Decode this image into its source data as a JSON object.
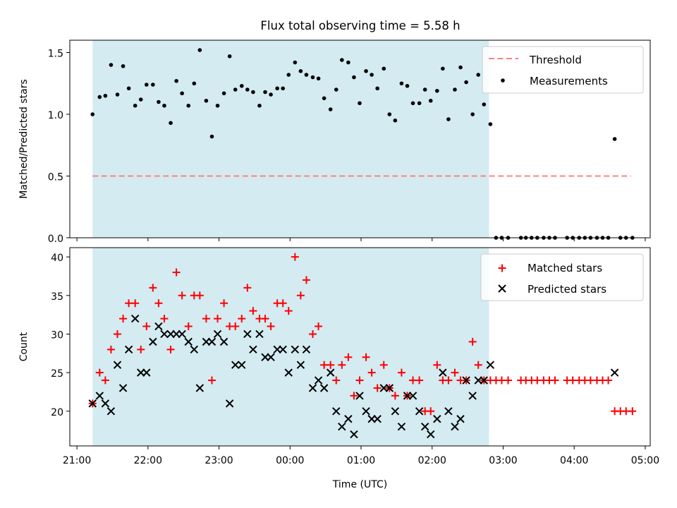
{
  "title": "Flux total observing time = 5.58 h",
  "colors": {
    "shade": "#add8e6",
    "threshold": "#ff8080",
    "matched": "#ff0000",
    "predicted": "#000000",
    "measurement": "#000000"
  },
  "chart_data": [
    {
      "type": "scatter",
      "panel": "top",
      "ylabel": "Matched/Predicted stars",
      "ylim": [
        0,
        1.6
      ],
      "yticks": [
        0.0,
        0.5,
        1.0,
        1.5
      ],
      "ytick_labels": [
        "0.0",
        "0.5",
        "1.0",
        "1.5"
      ],
      "shaded_span_hours": [
        21.22,
        26.8
      ],
      "legend": [
        "Threshold",
        "Measurements"
      ],
      "legend_position": "top-right",
      "threshold": {
        "name": "Threshold",
        "value": 0.5,
        "x_range_hours": [
          21.22,
          28.8
        ]
      },
      "series": [
        {
          "name": "Measurements",
          "x_hours": [
            21.22,
            21.32,
            21.4,
            21.48,
            21.57,
            21.65,
            21.73,
            21.82,
            21.9,
            21.98,
            22.07,
            22.15,
            22.23,
            22.32,
            22.4,
            22.48,
            22.57,
            22.65,
            22.73,
            22.82,
            22.9,
            22.98,
            23.07,
            23.15,
            23.23,
            23.32,
            23.4,
            23.48,
            23.57,
            23.65,
            23.73,
            23.82,
            23.9,
            23.98,
            24.07,
            24.15,
            24.23,
            24.32,
            24.4,
            24.48,
            24.57,
            24.65,
            24.73,
            24.82,
            24.9,
            24.98,
            25.07,
            25.15,
            25.23,
            25.32,
            25.4,
            25.48,
            25.57,
            25.65,
            25.73,
            25.82,
            25.9,
            25.98,
            26.07,
            26.15,
            26.23,
            26.32,
            26.4,
            26.48,
            26.57,
            26.65,
            26.73,
            26.82,
            26.9,
            26.98,
            27.07,
            27.25,
            27.32,
            27.4,
            27.48,
            27.57,
            27.65,
            27.73,
            27.9,
            27.98,
            28.07,
            28.15,
            28.23,
            28.32,
            28.4,
            28.48,
            28.57,
            28.65,
            28.73,
            28.82
          ],
          "y": [
            1.0,
            1.14,
            1.15,
            1.4,
            1.16,
            1.39,
            1.21,
            1.07,
            1.12,
            1.24,
            1.24,
            1.1,
            1.07,
            0.93,
            1.27,
            1.17,
            1.07,
            1.25,
            1.52,
            1.11,
            0.82,
            1.07,
            1.17,
            1.47,
            1.2,
            1.23,
            1.2,
            1.18,
            1.07,
            1.18,
            1.16,
            1.21,
            1.21,
            1.32,
            1.42,
            1.35,
            1.32,
            1.3,
            1.29,
            1.13,
            1.04,
            1.2,
            1.44,
            1.42,
            1.3,
            1.09,
            1.35,
            1.32,
            1.21,
            1.37,
            1.0,
            0.95,
            1.25,
            1.23,
            1.09,
            1.09,
            1.2,
            1.11,
            1.19,
            1.37,
            0.96,
            1.2,
            1.38,
            1.26,
            1.0,
            1.32,
            1.08,
            0.92,
            0.0,
            0.0,
            0.0,
            0.0,
            0.0,
            0.0,
            0.0,
            0.0,
            0.0,
            0.0,
            0.0,
            0.0,
            0.0,
            0.0,
            0.0,
            0.0,
            0.0,
            0.0,
            0.8,
            0.0,
            0.0,
            0.0
          ]
        }
      ]
    },
    {
      "type": "scatter",
      "panel": "bottom",
      "xlabel": "Time (UTC)",
      "ylabel": "Count",
      "ylim": [
        15.5,
        41.2
      ],
      "yticks": [
        20,
        25,
        30,
        35,
        40
      ],
      "ytick_labels": [
        "20",
        "25",
        "30",
        "35",
        "40"
      ],
      "xlim_hours": [
        20.9,
        29.07
      ],
      "xticks_hours": [
        21,
        22,
        23,
        24,
        25,
        26,
        27,
        28,
        29
      ],
      "xtick_labels": [
        "21:00",
        "22:00",
        "23:00",
        "00:00",
        "01:00",
        "02:00",
        "03:00",
        "04:00",
        "05:00"
      ],
      "shaded_span_hours": [
        21.22,
        26.8
      ],
      "legend": [
        "Matched stars",
        "Predicted stars"
      ],
      "legend_position": "top-right",
      "series": [
        {
          "name": "Matched stars",
          "marker": "+",
          "x_hours": [
            21.22,
            21.32,
            21.4,
            21.48,
            21.57,
            21.65,
            21.73,
            21.82,
            21.9,
            21.98,
            22.07,
            22.15,
            22.23,
            22.32,
            22.4,
            22.48,
            22.57,
            22.65,
            22.73,
            22.82,
            22.9,
            22.98,
            23.07,
            23.15,
            23.23,
            23.32,
            23.4,
            23.48,
            23.57,
            23.65,
            23.73,
            23.82,
            23.9,
            23.98,
            24.07,
            24.15,
            24.23,
            24.32,
            24.4,
            24.48,
            24.57,
            24.65,
            24.73,
            24.82,
            24.9,
            24.98,
            25.07,
            25.15,
            25.23,
            25.32,
            25.4,
            25.48,
            25.57,
            25.65,
            25.73,
            25.82,
            25.9,
            25.98,
            26.07,
            26.15,
            26.23,
            26.32,
            26.4,
            26.48,
            26.57,
            26.65,
            26.73,
            26.82,
            26.9,
            26.98,
            27.07,
            27.25,
            27.32,
            27.4,
            27.48,
            27.57,
            27.65,
            27.73,
            27.9,
            27.98,
            28.07,
            28.15,
            28.23,
            28.32,
            28.4,
            28.48,
            28.57,
            28.65,
            28.73,
            28.82
          ],
          "y": [
            21,
            25,
            24,
            28,
            30,
            32,
            34,
            34,
            28,
            31,
            36,
            34,
            32,
            28,
            38,
            35,
            31,
            35,
            35,
            32,
            24,
            32,
            34,
            31,
            31,
            32,
            36,
            33,
            32,
            32,
            31,
            34,
            34,
            33,
            40,
            35,
            37,
            30,
            31,
            26,
            26,
            24,
            26,
            27,
            22,
            24,
            27,
            25,
            23,
            26,
            23,
            22,
            25,
            22,
            24,
            24,
            20,
            20,
            26,
            24,
            24,
            25,
            24,
            24,
            29,
            26,
            24,
            24,
            24,
            24,
            24,
            24,
            24,
            24,
            24,
            24,
            24,
            24,
            24,
            24,
            24,
            24,
            24,
            24,
            24,
            24,
            20,
            20,
            20,
            20
          ]
        },
        {
          "name": "Predicted stars",
          "marker": "x",
          "x_hours": [
            21.22,
            21.32,
            21.4,
            21.48,
            21.57,
            21.65,
            21.73,
            21.82,
            21.9,
            21.98,
            22.07,
            22.15,
            22.23,
            22.32,
            22.4,
            22.48,
            22.57,
            22.65,
            22.73,
            22.82,
            22.9,
            22.98,
            23.07,
            23.15,
            23.23,
            23.32,
            23.4,
            23.48,
            23.57,
            23.65,
            23.73,
            23.82,
            23.9,
            23.98,
            24.07,
            24.15,
            24.23,
            24.32,
            24.4,
            24.48,
            24.57,
            24.65,
            24.73,
            24.82,
            24.9,
            24.98,
            25.07,
            25.15,
            25.23,
            25.32,
            25.4,
            25.48,
            25.57,
            25.65,
            25.73,
            25.82,
            25.9,
            25.98,
            26.07,
            26.15,
            26.23,
            26.32,
            26.4,
            26.48,
            26.57,
            26.65,
            26.73,
            26.82,
            28.57
          ],
          "y": [
            21,
            22,
            21,
            20,
            26,
            23,
            28,
            32,
            25,
            25,
            29,
            31,
            30,
            30,
            30,
            30,
            29,
            28,
            23,
            29,
            29,
            30,
            29,
            21,
            26,
            26,
            30,
            28,
            30,
            27,
            27,
            28,
            28,
            25,
            28,
            26,
            28,
            23,
            24,
            23,
            25,
            20,
            18,
            19,
            17,
            22,
            20,
            19,
            19,
            23,
            23,
            20,
            18,
            22,
            22,
            20,
            18,
            17,
            19,
            25,
            20,
            18,
            19,
            24,
            22,
            24,
            24,
            26,
            25
          ]
        }
      ]
    }
  ]
}
